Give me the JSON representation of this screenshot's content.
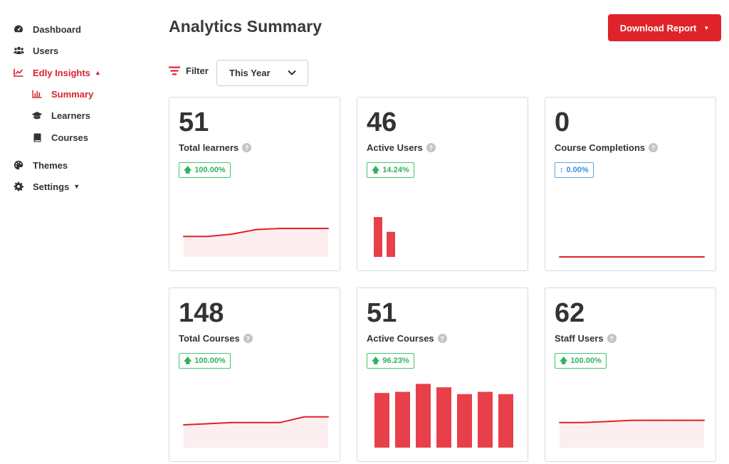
{
  "sidebar": {
    "items": [
      {
        "label": "Dashboard",
        "icon": "tachometer-icon"
      },
      {
        "label": "Users",
        "icon": "users-icon"
      },
      {
        "label": "Edly Insights",
        "icon": "line-chart-icon",
        "active": true
      },
      {
        "label": "Summary",
        "icon": "bar-chart-icon",
        "active": true
      },
      {
        "label": "Learners",
        "icon": "graduation-cap-icon"
      },
      {
        "label": "Courses",
        "icon": "book-icon"
      },
      {
        "label": "Themes",
        "icon": "palette-icon"
      },
      {
        "label": "Settings",
        "icon": "gear-icon"
      }
    ]
  },
  "header": {
    "title": "Analytics Summary",
    "download_label": "Download Report"
  },
  "filter": {
    "label": "Filter",
    "selected": "This Year"
  },
  "colors": {
    "accent": "#e0222b",
    "bar": "#e8404a",
    "area_fill": "#fdeef0",
    "badge_green": "#2fb25e",
    "badge_blue": "#3a8ee0"
  },
  "cards": [
    {
      "value": "51",
      "label": "Total learners",
      "change": "100.00%"
    },
    {
      "value": "46",
      "label": "Active Users",
      "change": "14.24%"
    },
    {
      "value": "0",
      "label": "Course Completions",
      "change": "0.00%"
    },
    {
      "value": "148",
      "label": "Total Courses",
      "change": "100.00%"
    },
    {
      "value": "51",
      "label": "Active Courses",
      "change": "96.23%"
    },
    {
      "value": "62",
      "label": "Staff Users",
      "change": "100.00%"
    }
  ],
  "chart_data": [
    {
      "type": "area",
      "values": [
        18,
        18,
        20,
        24,
        25,
        25,
        25
      ]
    },
    {
      "type": "bar",
      "values": [
        35,
        22
      ]
    },
    {
      "type": "line",
      "values": [
        0,
        0,
        0,
        0,
        0,
        0,
        0,
        0,
        0,
        0,
        0,
        0
      ]
    },
    {
      "type": "area",
      "values": [
        20,
        21,
        22,
        22,
        22,
        27,
        27
      ]
    },
    {
      "type": "bar",
      "values": [
        48,
        49,
        56,
        53,
        47,
        49,
        47
      ]
    },
    {
      "type": "area",
      "values": [
        22,
        22,
        23,
        24,
        24,
        24,
        24
      ]
    }
  ]
}
